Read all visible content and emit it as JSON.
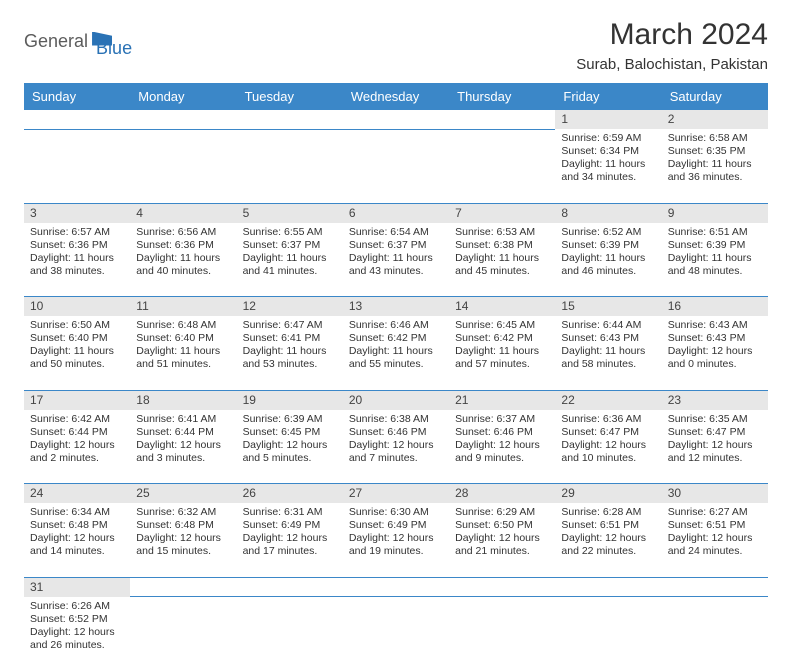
{
  "logo": {
    "general": "General",
    "blue": "Blue"
  },
  "title": "March 2024",
  "location": "Surab, Balochistan, Pakistan",
  "weekdays": [
    "Sunday",
    "Monday",
    "Tuesday",
    "Wednesday",
    "Thursday",
    "Friday",
    "Saturday"
  ],
  "colors": {
    "header_bg": "#3b87c8",
    "header_fg": "#ffffff",
    "daynum_bg": "#e7e7e7",
    "border": "#3b87c8",
    "body_text": "#333333",
    "logo_gray": "#5c5c5c",
    "logo_blue": "#2a72b5"
  },
  "typography": {
    "title_fontsize": 30,
    "location_fontsize": 15,
    "weekday_fontsize": 13,
    "daynum_fontsize": 12,
    "cell_fontsize": 10.5
  },
  "weeks": [
    [
      null,
      null,
      null,
      null,
      null,
      {
        "n": "1",
        "sr": "Sunrise: 6:59 AM",
        "ss": "Sunset: 6:34 PM",
        "dl1": "Daylight: 11 hours",
        "dl2": "and 34 minutes."
      },
      {
        "n": "2",
        "sr": "Sunrise: 6:58 AM",
        "ss": "Sunset: 6:35 PM",
        "dl1": "Daylight: 11 hours",
        "dl2": "and 36 minutes."
      }
    ],
    [
      {
        "n": "3",
        "sr": "Sunrise: 6:57 AM",
        "ss": "Sunset: 6:36 PM",
        "dl1": "Daylight: 11 hours",
        "dl2": "and 38 minutes."
      },
      {
        "n": "4",
        "sr": "Sunrise: 6:56 AM",
        "ss": "Sunset: 6:36 PM",
        "dl1": "Daylight: 11 hours",
        "dl2": "and 40 minutes."
      },
      {
        "n": "5",
        "sr": "Sunrise: 6:55 AM",
        "ss": "Sunset: 6:37 PM",
        "dl1": "Daylight: 11 hours",
        "dl2": "and 41 minutes."
      },
      {
        "n": "6",
        "sr": "Sunrise: 6:54 AM",
        "ss": "Sunset: 6:37 PM",
        "dl1": "Daylight: 11 hours",
        "dl2": "and 43 minutes."
      },
      {
        "n": "7",
        "sr": "Sunrise: 6:53 AM",
        "ss": "Sunset: 6:38 PM",
        "dl1": "Daylight: 11 hours",
        "dl2": "and 45 minutes."
      },
      {
        "n": "8",
        "sr": "Sunrise: 6:52 AM",
        "ss": "Sunset: 6:39 PM",
        "dl1": "Daylight: 11 hours",
        "dl2": "and 46 minutes."
      },
      {
        "n": "9",
        "sr": "Sunrise: 6:51 AM",
        "ss": "Sunset: 6:39 PM",
        "dl1": "Daylight: 11 hours",
        "dl2": "and 48 minutes."
      }
    ],
    [
      {
        "n": "10",
        "sr": "Sunrise: 6:50 AM",
        "ss": "Sunset: 6:40 PM",
        "dl1": "Daylight: 11 hours",
        "dl2": "and 50 minutes."
      },
      {
        "n": "11",
        "sr": "Sunrise: 6:48 AM",
        "ss": "Sunset: 6:40 PM",
        "dl1": "Daylight: 11 hours",
        "dl2": "and 51 minutes."
      },
      {
        "n": "12",
        "sr": "Sunrise: 6:47 AM",
        "ss": "Sunset: 6:41 PM",
        "dl1": "Daylight: 11 hours",
        "dl2": "and 53 minutes."
      },
      {
        "n": "13",
        "sr": "Sunrise: 6:46 AM",
        "ss": "Sunset: 6:42 PM",
        "dl1": "Daylight: 11 hours",
        "dl2": "and 55 minutes."
      },
      {
        "n": "14",
        "sr": "Sunrise: 6:45 AM",
        "ss": "Sunset: 6:42 PM",
        "dl1": "Daylight: 11 hours",
        "dl2": "and 57 minutes."
      },
      {
        "n": "15",
        "sr": "Sunrise: 6:44 AM",
        "ss": "Sunset: 6:43 PM",
        "dl1": "Daylight: 11 hours",
        "dl2": "and 58 minutes."
      },
      {
        "n": "16",
        "sr": "Sunrise: 6:43 AM",
        "ss": "Sunset: 6:43 PM",
        "dl1": "Daylight: 12 hours",
        "dl2": "and 0 minutes."
      }
    ],
    [
      {
        "n": "17",
        "sr": "Sunrise: 6:42 AM",
        "ss": "Sunset: 6:44 PM",
        "dl1": "Daylight: 12 hours",
        "dl2": "and 2 minutes."
      },
      {
        "n": "18",
        "sr": "Sunrise: 6:41 AM",
        "ss": "Sunset: 6:44 PM",
        "dl1": "Daylight: 12 hours",
        "dl2": "and 3 minutes."
      },
      {
        "n": "19",
        "sr": "Sunrise: 6:39 AM",
        "ss": "Sunset: 6:45 PM",
        "dl1": "Daylight: 12 hours",
        "dl2": "and 5 minutes."
      },
      {
        "n": "20",
        "sr": "Sunrise: 6:38 AM",
        "ss": "Sunset: 6:46 PM",
        "dl1": "Daylight: 12 hours",
        "dl2": "and 7 minutes."
      },
      {
        "n": "21",
        "sr": "Sunrise: 6:37 AM",
        "ss": "Sunset: 6:46 PM",
        "dl1": "Daylight: 12 hours",
        "dl2": "and 9 minutes."
      },
      {
        "n": "22",
        "sr": "Sunrise: 6:36 AM",
        "ss": "Sunset: 6:47 PM",
        "dl1": "Daylight: 12 hours",
        "dl2": "and 10 minutes."
      },
      {
        "n": "23",
        "sr": "Sunrise: 6:35 AM",
        "ss": "Sunset: 6:47 PM",
        "dl1": "Daylight: 12 hours",
        "dl2": "and 12 minutes."
      }
    ],
    [
      {
        "n": "24",
        "sr": "Sunrise: 6:34 AM",
        "ss": "Sunset: 6:48 PM",
        "dl1": "Daylight: 12 hours",
        "dl2": "and 14 minutes."
      },
      {
        "n": "25",
        "sr": "Sunrise: 6:32 AM",
        "ss": "Sunset: 6:48 PM",
        "dl1": "Daylight: 12 hours",
        "dl2": "and 15 minutes."
      },
      {
        "n": "26",
        "sr": "Sunrise: 6:31 AM",
        "ss": "Sunset: 6:49 PM",
        "dl1": "Daylight: 12 hours",
        "dl2": "and 17 minutes."
      },
      {
        "n": "27",
        "sr": "Sunrise: 6:30 AM",
        "ss": "Sunset: 6:49 PM",
        "dl1": "Daylight: 12 hours",
        "dl2": "and 19 minutes."
      },
      {
        "n": "28",
        "sr": "Sunrise: 6:29 AM",
        "ss": "Sunset: 6:50 PM",
        "dl1": "Daylight: 12 hours",
        "dl2": "and 21 minutes."
      },
      {
        "n": "29",
        "sr": "Sunrise: 6:28 AM",
        "ss": "Sunset: 6:51 PM",
        "dl1": "Daylight: 12 hours",
        "dl2": "and 22 minutes."
      },
      {
        "n": "30",
        "sr": "Sunrise: 6:27 AM",
        "ss": "Sunset: 6:51 PM",
        "dl1": "Daylight: 12 hours",
        "dl2": "and 24 minutes."
      }
    ],
    [
      {
        "n": "31",
        "sr": "Sunrise: 6:26 AM",
        "ss": "Sunset: 6:52 PM",
        "dl1": "Daylight: 12 hours",
        "dl2": "and 26 minutes."
      },
      null,
      null,
      null,
      null,
      null,
      null
    ]
  ]
}
